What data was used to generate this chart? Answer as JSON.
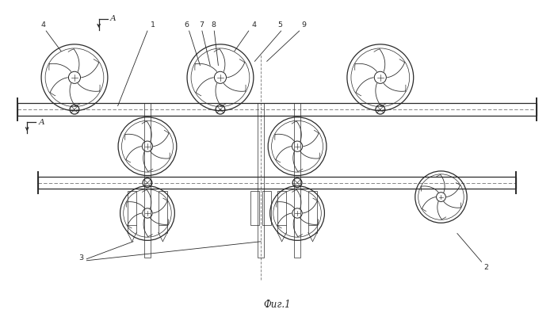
{
  "background": "#ffffff",
  "line_color": "#2a2a2a",
  "fig_caption": "Фиг.1",
  "section_letter": "А",
  "lw_thin": 0.5,
  "lw_med": 0.9,
  "lw_thick": 1.4,
  "labels": [
    "4",
    "1",
    "6",
    "7",
    "8",
    "4",
    "5",
    "9",
    "2",
    "3"
  ],
  "xlim": [
    0,
    13.5
  ],
  "ylim": [
    0,
    7.8
  ]
}
